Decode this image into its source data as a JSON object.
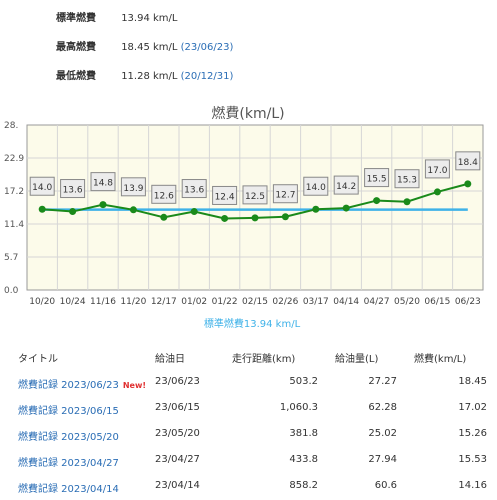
{
  "stats": {
    "standard": {
      "label": "標準燃費",
      "value": "13.94 km/L"
    },
    "best": {
      "label": "最高燃費",
      "value": "18.45 km/L",
      "date": "(23/06/23)"
    },
    "worst": {
      "label": "最低燃費",
      "value": "11.28 km/L",
      "date": "(20/12/31)"
    }
  },
  "chart_data": {
    "type": "line",
    "title": "燃費(km/L)",
    "y_ticks": [
      "0.0",
      "5.7",
      "11.4",
      "17.2",
      "22.9",
      "28."
    ],
    "ylim": [
      0,
      28.6
    ],
    "categories": [
      "10/20",
      "10/24",
      "11/16",
      "11/20",
      "12/17",
      "01/02",
      "01/22",
      "02/15",
      "02/26",
      "03/17",
      "04/14",
      "04/27",
      "05/20",
      "06/15",
      "06/23"
    ],
    "values": [
      14.0,
      13.6,
      14.8,
      13.9,
      12.6,
      13.6,
      12.4,
      12.5,
      12.7,
      14.0,
      14.2,
      15.5,
      15.3,
      17.0,
      18.4
    ],
    "data_labels": [
      "14.0",
      "13.6",
      "14.8",
      "13.9",
      "12.6",
      "13.6",
      "12.4",
      "12.5",
      "12.7",
      "14.0",
      "14.2",
      "15.5",
      "15.3",
      "17.0",
      "18.4"
    ],
    "standard_line": 13.94,
    "standard_label": "標準燃費13.94 km/L",
    "grid": true,
    "line_color": "#1a8a1a",
    "standard_color": "#3fb2e8"
  },
  "table": {
    "headers": {
      "title": "タイトル",
      "date": "給油日",
      "distance": "走行距離(km)",
      "fuel": "給油量(L)",
      "efficiency": "燃費(km/L)"
    },
    "new_badge": "New!",
    "rows": [
      {
        "title": "燃費記録 2023/06/23",
        "date": "23/06/23",
        "distance": "503.2",
        "fuel": "27.27",
        "efficiency": "18.45"
      },
      {
        "title": "燃費記録 2023/06/15",
        "date": "23/06/15",
        "distance": "1,060.3",
        "fuel": "62.28",
        "efficiency": "17.02"
      },
      {
        "title": "燃費記録 2023/05/20",
        "date": "23/05/20",
        "distance": "381.8",
        "fuel": "25.02",
        "efficiency": "15.26"
      },
      {
        "title": "燃費記録 2023/04/27",
        "date": "23/04/27",
        "distance": "433.8",
        "fuel": "27.94",
        "efficiency": "15.53"
      },
      {
        "title": "燃費記録 2023/04/14",
        "date": "23/04/14",
        "distance": "858.2",
        "fuel": "60.6",
        "efficiency": "14.16"
      }
    ]
  }
}
